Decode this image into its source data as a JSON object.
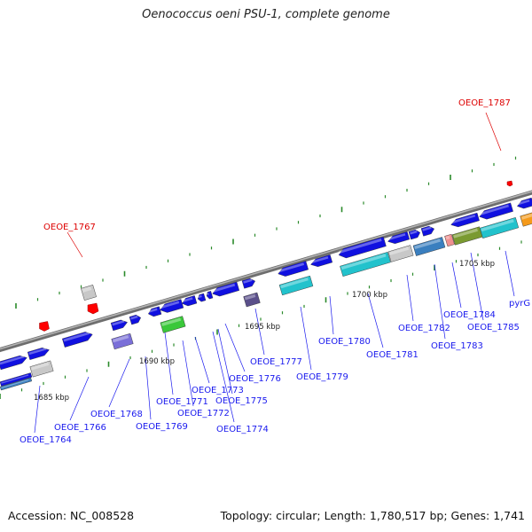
{
  "title": "Oenococcus oeni PSU-1, complete genome",
  "footer": {
    "accession": "Accession: NC_008528",
    "summary": "Topology: circular; Length: 1,780,517 bp; Genes: 1,741"
  },
  "colors": {
    "backbone": "#8a8a8a",
    "forward_gene": "#1010e0",
    "reverse_gene": "#1010e0",
    "rna_gene": "#ff0000",
    "tick": "#2a8a2a",
    "label_blue": "#1a1aee",
    "label_red": "#dd0000"
  },
  "scale_labels": [
    "1685 kbp",
    "1690 kbp",
    "1695 kbp",
    "1700 kbp",
    "1705 kbp"
  ],
  "gene_labels": [
    {
      "text": "OEOE_1764",
      "color": "blue"
    },
    {
      "text": "OEOE_1766",
      "color": "blue"
    },
    {
      "text": "OEOE_1767",
      "color": "red"
    },
    {
      "text": "OEOE_1768",
      "color": "blue"
    },
    {
      "text": "OEOE_1769",
      "color": "blue"
    },
    {
      "text": "OEOE_1771",
      "color": "blue"
    },
    {
      "text": "OEOE_1772",
      "color": "blue"
    },
    {
      "text": "OEOE_1773",
      "color": "blue"
    },
    {
      "text": "OEOE_1774",
      "color": "blue"
    },
    {
      "text": "OEOE_1775",
      "color": "blue"
    },
    {
      "text": "OEOE_1776",
      "color": "blue"
    },
    {
      "text": "OEOE_1777",
      "color": "blue"
    },
    {
      "text": "OEOE_1779",
      "color": "blue"
    },
    {
      "text": "OEOE_1780",
      "color": "blue"
    },
    {
      "text": "OEOE_1781",
      "color": "blue"
    },
    {
      "text": "OEOE_1782",
      "color": "blue"
    },
    {
      "text": "OEOE_1783",
      "color": "blue"
    },
    {
      "text": "OEOE_1784",
      "color": "blue"
    },
    {
      "text": "OEOE_1785",
      "color": "blue"
    },
    {
      "text": "OEOE_1787",
      "color": "red"
    },
    {
      "text": "pyrG",
      "color": "blue"
    }
  ]
}
